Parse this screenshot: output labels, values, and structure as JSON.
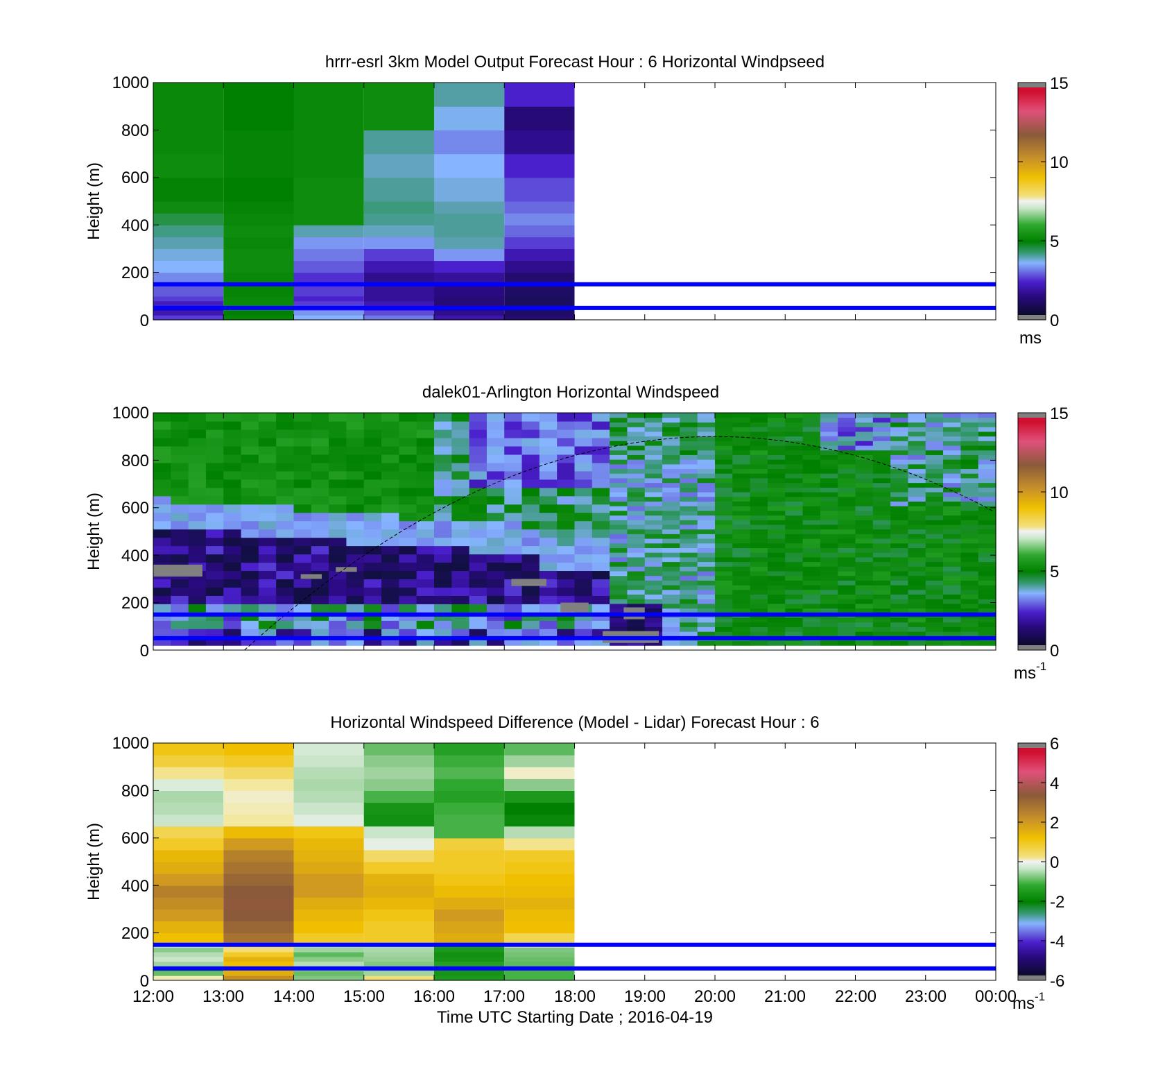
{
  "chart_data": [
    {
      "type": "heatmap",
      "title": "hrrr-esrl 3km Model Output   Forecast Hour : 6 Horizontal Windpseed",
      "ylabel": "Height (m)",
      "xlabel": "",
      "ylim": [
        0,
        1000
      ],
      "xlim": [
        "12:00",
        "00:00"
      ],
      "yticks": [
        "0",
        "200",
        "400",
        "600",
        "800",
        "1000"
      ],
      "xticks": [
        "12:00",
        "13:00",
        "14:00",
        "15:00",
        "16:00",
        "17:00",
        "18:00",
        "19:00",
        "20:00",
        "21:00",
        "22:00",
        "23:00",
        "00:00"
      ],
      "colorbar": {
        "min": 0,
        "max": 15,
        "ticks": [
          "0",
          "5",
          "10",
          "15"
        ],
        "unit": "ms",
        "unit_sup": ""
      },
      "colormap": "speed",
      "heights": [
        0,
        20,
        40,
        60,
        80,
        100,
        150,
        200,
        250,
        300,
        350,
        400,
        450,
        500,
        600,
        700,
        800,
        900,
        1000
      ],
      "columns": [
        {
          "start_h": 12,
          "end_h": 13,
          "values": [
            2.2,
            1.8,
            1.5,
            1.9,
            2.2,
            2.4,
            2.7,
            3.0,
            3.2,
            3.5,
            3.9,
            4.3,
            4.6,
            4.9,
            5.3,
            5.2,
            5.2,
            5.2
          ]
        },
        {
          "start_h": 13,
          "end_h": 14,
          "values": [
            4.8,
            5.0,
            5.3,
            5.2,
            5.2,
            5.1,
            5.2,
            5.3,
            5.3,
            5.2,
            5.3,
            5.2,
            5.1,
            5.0,
            5.1,
            5.1,
            5.0,
            5.0
          ]
        },
        {
          "start_h": 14,
          "end_h": 15,
          "values": [
            3.0,
            2.8,
            2.4,
            2.2,
            2.0,
            2.2,
            2.1,
            2.4,
            2.6,
            2.8,
            3.5,
            5.3,
            5.3,
            5.3,
            5.2,
            5.2,
            5.2,
            5.2
          ]
        },
        {
          "start_h": 15,
          "end_h": 16,
          "values": [
            2.6,
            2.3,
            2.0,
            1.8,
            1.6,
            1.6,
            1.5,
            1.8,
            2.2,
            2.8,
            3.4,
            3.8,
            4.0,
            3.7,
            3.4,
            3.7,
            5.3,
            5.3
          ]
        },
        {
          "start_h": 16,
          "end_h": 17,
          "values": [
            1.7,
            1.5,
            1.4,
            1.3,
            1.3,
            1.4,
            1.6,
            2.0,
            2.8,
            3.5,
            3.7,
            3.7,
            3.5,
            3.2,
            3.0,
            2.7,
            3.1,
            3.6
          ]
        },
        {
          "start_h": 17,
          "end_h": 18,
          "values": [
            1.2,
            1.1,
            1.1,
            1.0,
            1.0,
            1.1,
            1.2,
            1.5,
            1.8,
            2.2,
            2.5,
            2.7,
            2.5,
            2.3,
            2.0,
            1.5,
            1.3,
            2.0
          ]
        }
      ],
      "reference_lines_m": [
        50,
        150
      ]
    },
    {
      "type": "heatmap",
      "title": "dalek01-Arlington  Horizontal Windspeed",
      "ylabel": "Height (m)",
      "xlabel": "",
      "ylim": [
        0,
        1000
      ],
      "xlim": [
        "12:00",
        "00:00"
      ],
      "yticks": [
        "0",
        "200",
        "400",
        "600",
        "800",
        "1000"
      ],
      "xticks": [
        "12:00",
        "13:00",
        "14:00",
        "15:00",
        "16:00",
        "17:00",
        "18:00",
        "19:00",
        "20:00",
        "21:00",
        "22:00",
        "23:00",
        "00:00"
      ],
      "colorbar": {
        "min": 0,
        "max": 15,
        "ticks": [
          "0",
          "5",
          "10",
          "15"
        ],
        "unit": "ms",
        "unit_sup": "-1"
      },
      "colormap": "speed",
      "data_end_hour": 23.85,
      "reference_lines_m": [
        50,
        150
      ],
      "dashed_curve": {
        "peak_hour": 20.0,
        "peak_m": 900,
        "zero_hour": 13.3,
        "note": "boundary layer curve"
      }
    },
    {
      "type": "heatmap",
      "title": "Horizontal Windspeed Difference (Model - Lidar) Forecast Hour : 6",
      "ylabel": "Height (m)",
      "xlabel": "Time UTC  Starting Date ; 2016-04-19",
      "ylim": [
        0,
        1000
      ],
      "xlim": [
        "12:00",
        "00:00"
      ],
      "yticks": [
        "0",
        "200",
        "400",
        "600",
        "800",
        "1000"
      ],
      "xticks": [
        "12:00",
        "13:00",
        "14:00",
        "15:00",
        "16:00",
        "17:00",
        "18:00",
        "19:00",
        "20:00",
        "21:00",
        "22:00",
        "23:00",
        "00:00"
      ],
      "colorbar": {
        "min": -6,
        "max": 6,
        "ticks": [
          "-6",
          "-4",
          "-2",
          "0",
          "2",
          "4",
          "6"
        ],
        "unit": "ms",
        "unit_sup": "-1"
      },
      "colormap": "diff",
      "heights": [
        0,
        20,
        40,
        60,
        80,
        100,
        120,
        140,
        160,
        200,
        250,
        300,
        350,
        400,
        450,
        500,
        550,
        600,
        650,
        700,
        750,
        800,
        850,
        900,
        950,
        1000
      ],
      "columns": [
        {
          "start_h": 12,
          "end_h": 13,
          "values": [
            0.3,
            -1.5,
            -2.0,
            -1.0,
            -0.6,
            -0.8,
            -1.2,
            -0.5,
            1.2,
            1.5,
            2.0,
            2.2,
            2.4,
            2.0,
            1.6,
            1.4,
            1.0,
            0.8,
            -0.6,
            -0.8,
            -0.9,
            -0.4,
            0.5,
            0.9,
            1.1
          ]
        },
        {
          "start_h": 13,
          "end_h": 14,
          "values": [
            2.2,
            1.6,
            1.3,
            1.2,
            1.5,
            1.0,
            0.6,
            0.7,
            2.6,
            2.8,
            3.0,
            3.1,
            3.0,
            2.8,
            2.6,
            2.4,
            2.0,
            1.3,
            0.4,
            0.3,
            0.2,
            0.4,
            0.7,
            1.0,
            1.2
          ]
        },
        {
          "start_h": 14,
          "end_h": 15,
          "values": [
            -1.3,
            -1.5,
            -1.0,
            -0.8,
            -1.2,
            -1.6,
            -1.0,
            -0.8,
            1.0,
            1.2,
            1.4,
            1.6,
            2.0,
            2.0,
            1.7,
            1.5,
            1.4,
            1.1,
            -0.3,
            -0.6,
            -0.8,
            -0.9,
            -0.8,
            -0.6,
            -0.5
          ]
        },
        {
          "start_h": 15,
          "end_h": 16,
          "values": [
            0.6,
            -1.0,
            -1.2,
            -1.3,
            -1.1,
            -1.0,
            -0.9,
            -0.8,
            1.0,
            1.0,
            1.1,
            1.4,
            1.6,
            1.5,
            1.0,
            0.7,
            -0.2,
            -0.6,
            -2.6,
            -2.5,
            -1.8,
            -1.2,
            -1.0,
            -1.2,
            -1.5
          ]
        },
        {
          "start_h": 16,
          "end_h": 17,
          "values": [
            -2.4,
            -2.5,
            -2.4,
            -2.2,
            -2.5,
            -2.6,
            -2.4,
            -2.3,
            1.6,
            1.8,
            2.0,
            1.6,
            1.3,
            1.1,
            1.0,
            1.0,
            0.9,
            -1.8,
            -1.8,
            -1.9,
            -2.2,
            -2.0,
            -1.7,
            -1.9,
            -2.2
          ]
        },
        {
          "start_h": 17,
          "end_h": 18,
          "values": [
            -1.8,
            -1.8,
            -1.7,
            -1.6,
            -1.5,
            -1.4,
            -1.3,
            0.3,
            0.8,
            1.2,
            1.3,
            1.5,
            1.3,
            1.2,
            1.1,
            1.0,
            0.5,
            -0.8,
            -2.8,
            -3.0,
            -2.4,
            -1.2,
            0.2,
            -1.0,
            -1.6
          ]
        }
      ],
      "reference_lines_m": [
        50,
        150
      ]
    }
  ]
}
